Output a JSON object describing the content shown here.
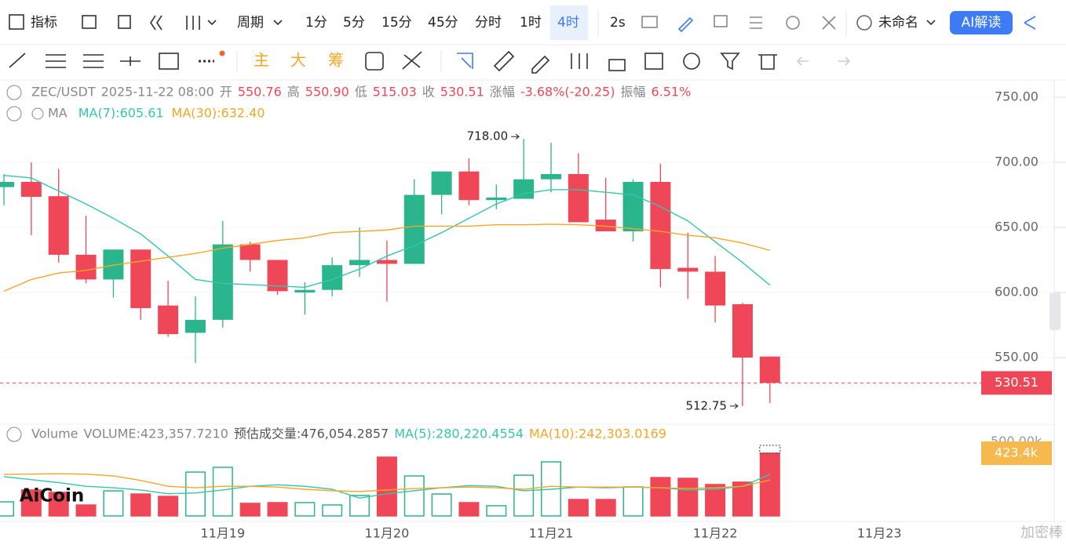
{
  "toolbar": {
    "row1": [
      "指标",
      "周期",
      "1分",
      "5分",
      "15分",
      "45分",
      "分时",
      "1时",
      "4时",
      "2s",
      "未命名",
      "AI解读"
    ],
    "row2": [
      "主",
      "大",
      "筹"
    ]
  },
  "watermark": "AiCoin",
  "corner_text": "加密棒",
  "chart_data": [
    {
      "type": "candlestick",
      "legend": [
        {
          "text": "ZEC/USDT",
          "color": "#888"
        },
        {
          "text": "2025-11-22 08:00",
          "color": "#888"
        },
        {
          "text": "开",
          "color": "#888"
        },
        {
          "text": "550.76",
          "color": "#ef4757"
        },
        {
          "text": "高",
          "color": "#888"
        },
        {
          "text": "550.90",
          "color": "#ef4757"
        },
        {
          "text": "低",
          "color": "#888"
        },
        {
          "text": "515.03",
          "color": "#ef4757"
        },
        {
          "text": "收",
          "color": "#888"
        },
        {
          "text": "530.51",
          "color": "#ef4757"
        },
        {
          "text": "涨幅",
          "color": "#888"
        },
        {
          "text": "-3.68%(-20.25)",
          "color": "#ef4757"
        },
        {
          "text": "振幅",
          "color": "#888"
        },
        {
          "text": "6.51%",
          "color": "#ef4757"
        }
      ],
      "indicator": "MA",
      "categories": [
        null,
        null,
        null,
        null,
        null,
        null,
        null,
        null,
        "11月19",
        null,
        null,
        null,
        null,
        null,
        "11月20",
        null,
        null,
        null,
        null,
        null,
        "11月21",
        null,
        null,
        null,
        null,
        null,
        "11月22",
        null,
        null,
        null,
        null,
        null,
        "11月23"
      ],
      "open": [
        681,
        685,
        674,
        629,
        610,
        633,
        590,
        569,
        579,
        637,
        625,
        600,
        602,
        621,
        625,
        622,
        675,
        693,
        671,
        672,
        687,
        691,
        656,
        647,
        685,
        619,
        616,
        591,
        550.76,
        null,
        null,
        null,
        null
      ],
      "high": [
        691,
        700,
        695,
        659,
        633,
        633,
        609,
        597,
        655,
        639,
        625,
        608,
        627,
        650,
        640,
        687,
        693,
        703,
        683,
        718,
        715,
        707,
        688,
        687,
        699,
        646,
        628,
        592,
        550.9,
        null,
        null,
        null,
        null
      ],
      "low": [
        667,
        644,
        623,
        607,
        596,
        579,
        566,
        546,
        573,
        616,
        598,
        583,
        597,
        612,
        593,
        622,
        660,
        667,
        664,
        672,
        677,
        654,
        647,
        639,
        604,
        595,
        577,
        512.75,
        515.03,
        null,
        null,
        null,
        null
      ],
      "close": [
        685,
        673.5,
        629,
        610,
        633,
        588,
        568,
        579,
        637,
        625,
        601,
        602,
        621,
        625,
        622,
        675,
        693,
        671,
        673,
        687,
        691,
        654,
        647,
        685,
        618,
        616,
        590,
        550,
        530.51,
        null,
        null,
        null,
        null
      ],
      "up_color": "#2bb58c",
      "down_color": "#ef4757",
      "series": [
        {
          "name": "MA(7)",
          "legend_value": "605.61",
          "color": "#33c6b0",
          "values": [
            690,
            688,
            678,
            668,
            657,
            645,
            628,
            610,
            607,
            606,
            605,
            604,
            610,
            618,
            628,
            636,
            646,
            657,
            668,
            676,
            679,
            679,
            677,
            675,
            666,
            655,
            639,
            623,
            605.61,
            null,
            null,
            null,
            null
          ]
        },
        {
          "name": "MA(30)",
          "legend_value": "632.40",
          "color": "#f5a623",
          "values": [
            601,
            610,
            615,
            617,
            621,
            624,
            627,
            630,
            634,
            637,
            640,
            642,
            646,
            647,
            648,
            651,
            651,
            651,
            652,
            652,
            652.5,
            652,
            651,
            649,
            647,
            644,
            642,
            638,
            632.4,
            null,
            null,
            null,
            null
          ]
        }
      ],
      "annotations": [
        {
          "label": "718.00",
          "value": 718
        },
        {
          "label": "512.75",
          "value": 512.75
        }
      ],
      "ylim": [
        499.4,
        762.7
      ],
      "yticks": [
        {
          "value": 550,
          "label": "550.00"
        },
        {
          "value": 600,
          "label": "600.00"
        },
        {
          "value": 650,
          "label": "650.00"
        },
        {
          "value": 700,
          "label": "700.00"
        },
        {
          "value": 750,
          "label": "750.00"
        }
      ],
      "grid": true
    },
    {
      "type": "volume",
      "legend": [
        {
          "text": "Volume",
          "color": "#888"
        },
        {
          "text": "VOLUME:423,357.7210",
          "color": "#888"
        },
        {
          "text": "预估成交量:476,054.2857",
          "color": "#555"
        },
        {
          "text": "MA(5):280,220.4554",
          "color": "#33c6b0"
        },
        {
          "text": "MA(10):242,303.0169",
          "color": "#f5a623"
        }
      ],
      "values": [
        95000,
        175000,
        159000,
        74000,
        169000,
        148000,
        132000,
        296000,
        328000,
        85000,
        90000,
        90000,
        74000,
        138000,
        397000,
        270000,
        148000,
        90000,
        69000,
        275000,
        365000,
        111000,
        111000,
        196000,
        259000,
        254000,
        212000,
        228000,
        423357.721,
        null,
        null,
        null,
        null
      ],
      "estimate": 476054.2857,
      "current_label": "423.4k",
      "series": [
        {
          "name": "MA(5)",
          "color": "#33c6b0",
          "values": [
            265000,
            245000,
            225000,
            200000,
            190000,
            175000,
            150000,
            155000,
            175000,
            200000,
            210000,
            200000,
            180000,
            120000,
            150000,
            170000,
            190000,
            205000,
            200000,
            170000,
            180000,
            195000,
            190000,
            195000,
            190000,
            175000,
            180000,
            200000,
            280220.4554,
            null,
            null,
            null,
            null
          ]
        },
        {
          "name": "MA(10)",
          "color": "#f5a623",
          "values": [
            280000,
            283000,
            285000,
            282000,
            270000,
            240000,
            200000,
            190000,
            200000,
            200000,
            195000,
            180000,
            170000,
            165000,
            175000,
            185000,
            190000,
            195000,
            190000,
            180000,
            200000,
            195000,
            195000,
            195000,
            190000,
            185000,
            190000,
            200000,
            242303.0169,
            null,
            null,
            null,
            null
          ]
        }
      ],
      "ylim": [
        0,
        614000
      ],
      "yticks": [
        {
          "value": 500000,
          "label": "500.00k"
        }
      ]
    }
  ]
}
